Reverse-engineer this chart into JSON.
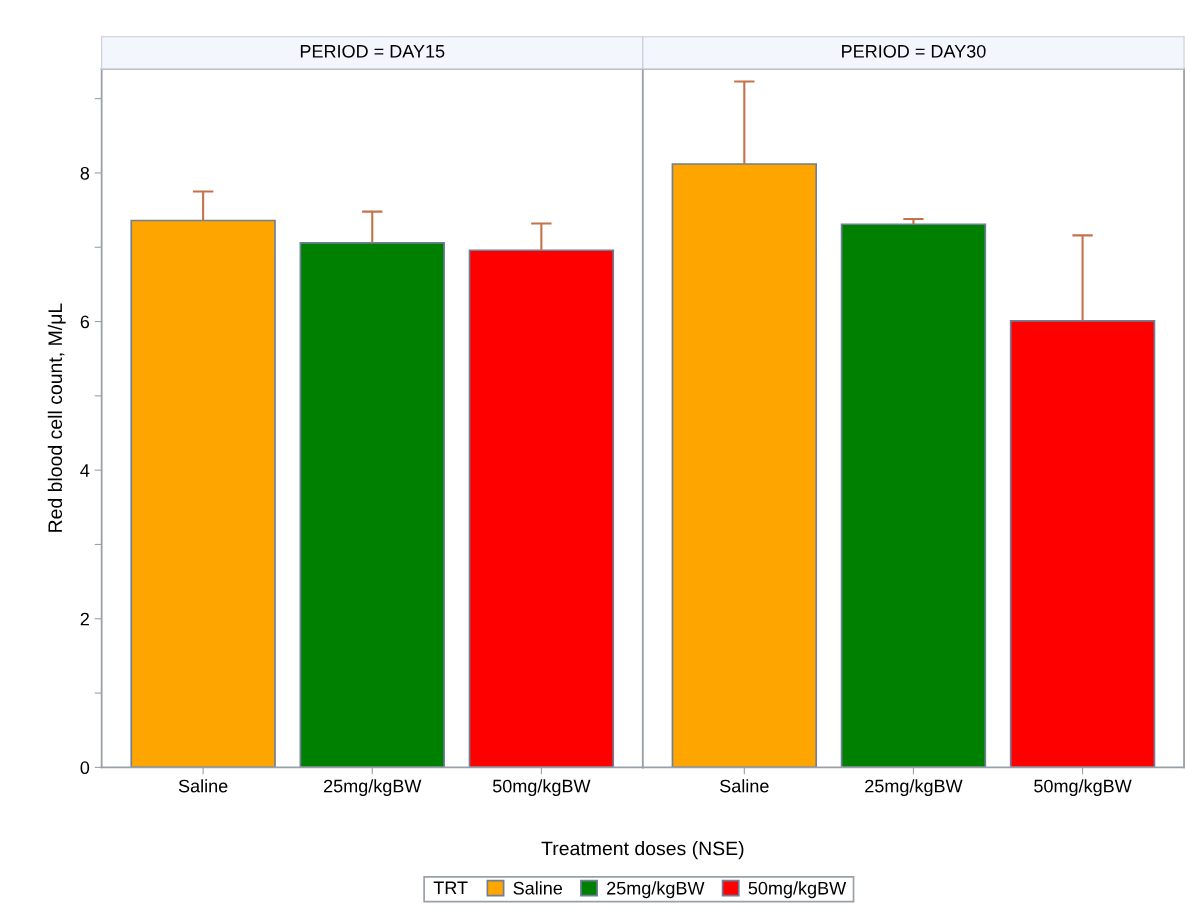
{
  "chart_data": [
    {
      "type": "bar",
      "title": "PERIOD = DAY15",
      "xlabel": "Treatment doses (NSE)",
      "ylabel": "Red blood cell count, M/μL",
      "categories": [
        "Saline",
        "25mg/kgBW",
        "50mg/kgBW"
      ],
      "series": [
        {
          "name": "Saline",
          "color": "#ffa500",
          "values": [
            7.36,
            null,
            null
          ],
          "errors": [
            [
              7.36,
              7.75
            ],
            null,
            null
          ]
        },
        {
          "name": "25mg/kgBW",
          "color": "#008000",
          "values": [
            null,
            7.06,
            null
          ],
          "errors": [
            null,
            [
              7.06,
              7.48
            ],
            null
          ]
        },
        {
          "name": "50mg/kgBW",
          "color": "#ff0000",
          "values": [
            null,
            null,
            6.96
          ],
          "errors": [
            null,
            null,
            [
              6.96,
              7.32
            ]
          ]
        }
      ],
      "ylim": [
        0,
        9.4
      ],
      "yticks": [
        0,
        {
          "value": 1,
          "label": null
        },
        2,
        {
          "value": 3,
          "label": null
        },
        4,
        {
          "value": 5,
          "label": null
        },
        6,
        {
          "value": 7,
          "label": null
        },
        8,
        {
          "value": 9,
          "label": null
        }
      ],
      "legend": "bottom",
      "legend_title": "TRT",
      "grid": false
    },
    {
      "type": "bar",
      "title": "PERIOD = DAY30",
      "categories": [
        "Saline",
        "25mg/kgBW",
        "50mg/kgBW"
      ],
      "series": [
        {
          "color": "#ffa500",
          "values": [
            8.12,
            null,
            null
          ],
          "errors": [
            [
              8.12,
              9.23
            ],
            null,
            null
          ]
        },
        {
          "color": "#008000",
          "values": [
            null,
            7.31,
            null
          ],
          "errors": [
            null,
            [
              7.31,
              7.38
            ],
            null
          ]
        },
        {
          "color": "#ff0000",
          "values": [
            null,
            null,
            6.01
          ],
          "errors": [
            null,
            null,
            [
              6.01,
              7.16
            ]
          ]
        }
      ],
      "ylim": [
        0,
        9.4
      ],
      "tick_labels": "x",
      "grid": false
    }
  ]
}
